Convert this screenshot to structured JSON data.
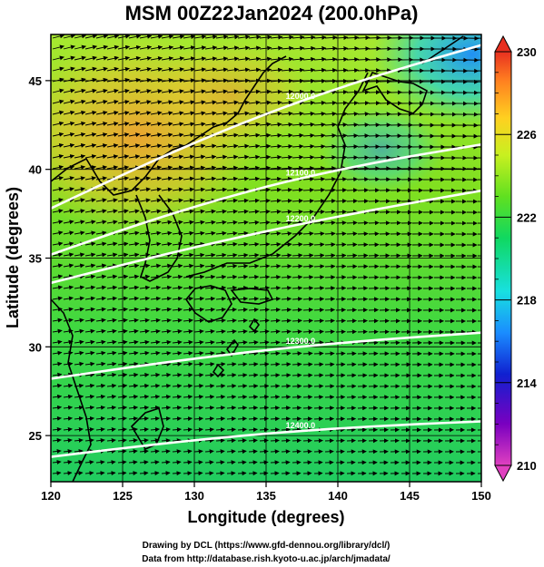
{
  "title": "MSM 00Z22Jan2024 (200.0hPa)",
  "x_axis": {
    "label": "Longitude (degrees)",
    "ticks": [
      "120",
      "125",
      "130",
      "135",
      "140",
      "145",
      "150"
    ],
    "range": [
      120,
      150
    ]
  },
  "y_axis": {
    "label": "Latitude  (degrees)",
    "ticks": [
      "25",
      "30",
      "35",
      "40",
      "45"
    ],
    "range": [
      22.4,
      47.6
    ]
  },
  "colorbar": {
    "ticks": [
      "230",
      "226",
      "222",
      "218",
      "214",
      "210"
    ],
    "range": [
      210,
      230
    ],
    "colors": [
      "#e040c0",
      "#7a00c0",
      "#1020d0",
      "#1a8cff",
      "#18e0e0",
      "#10d860",
      "#60e020",
      "#c8f020",
      "#ffd020",
      "#ff8020",
      "#e83020"
    ]
  },
  "contour_labels": [
    "12000.0",
    "12100.0",
    "12200.0",
    "12300.0",
    "12400.0"
  ],
  "credits": {
    "line1": "Drawing by DCL (https://www.gfd-dennou.org/library/dcl/)",
    "line2": "Data from http://database.rish.kyoto-u.ac.jp/arch/jmadata/"
  },
  "chart_data": {
    "type": "heatmap",
    "field": "temperature-like shaded field with geopotential height contours and wind vectors",
    "xlabel": "Longitude (degrees)",
    "ylabel": "Latitude  (degrees)",
    "xlim": [
      120,
      150
    ],
    "ylim": [
      22.4,
      47.6
    ],
    "zlim": [
      210,
      230
    ],
    "colorbar_ticks": [
      230,
      226,
      222,
      218,
      214,
      210
    ],
    "warm_region": {
      "lon": [
        121,
        134
      ],
      "lat": [
        37,
        45
      ],
      "value": 226
    },
    "cold_region": {
      "lon": [
        141,
        150
      ],
      "lat": [
        40,
        47.6
      ],
      "value": 216
    },
    "contours": [
      {
        "label": "12000.0",
        "lat_at_120": 37.8,
        "lat_at_150": 47.0
      },
      {
        "label": "12100.0",
        "lat_at_120": 35.2,
        "lat_at_150": 41.4
      },
      {
        "label": "12200.0",
        "lat_at_120": 33.6,
        "lat_at_150": 38.8
      },
      {
        "label": "12300.0",
        "lat_at_120": 28.2,
        "lat_at_150": 30.8
      },
      {
        "label": "12400.0",
        "lat_at_120": 23.8,
        "lat_at_150": 25.8
      }
    ],
    "wind": "westerly, stronger in north"
  }
}
